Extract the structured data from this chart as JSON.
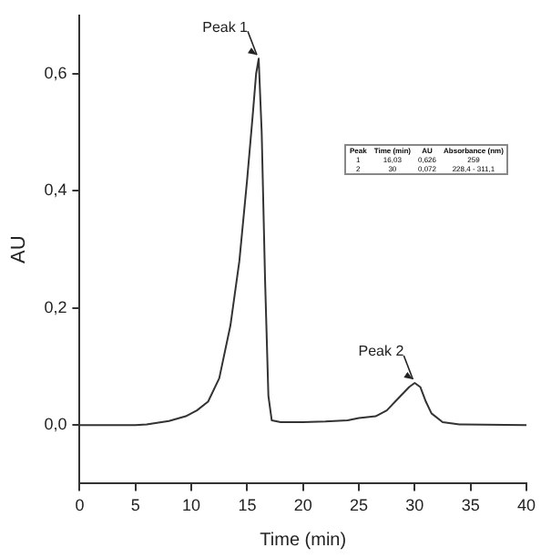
{
  "chart_data": {
    "type": "line",
    "xlabel": "Time (min)",
    "ylabel": "AU",
    "x": [
      0,
      5,
      6,
      8,
      9.5,
      10.5,
      11.5,
      12.5,
      13.5,
      14.3,
      15,
      15.5,
      15.8,
      16.03,
      16.3,
      16.6,
      16.9,
      17.2,
      18,
      20,
      22,
      24,
      25,
      26.5,
      27.5,
      28.5,
      29.5,
      30,
      30.5,
      31,
      31.5,
      32.5,
      34,
      40
    ],
    "series": [
      {
        "color": "#333333",
        "values": [
          0,
          0,
          0.001,
          0.007,
          0.015,
          0.025,
          0.04,
          0.08,
          0.17,
          0.28,
          0.42,
          0.53,
          0.6,
          0.626,
          0.5,
          0.25,
          0.05,
          0.008,
          0.005,
          0.005,
          0.006,
          0.008,
          0.012,
          0.015,
          0.025,
          0.045,
          0.065,
          0.072,
          0.065,
          0.04,
          0.02,
          0.005,
          0.001,
          0
        ]
      }
    ],
    "xlim": [
      0,
      40
    ],
    "xticks": [
      0,
      5,
      10,
      15,
      20,
      25,
      30,
      35,
      40
    ],
    "ylim": [
      -0.1,
      0.7
    ],
    "yticks": [
      {
        "value": 0,
        "label": "0,0"
      },
      {
        "value": 0.2,
        "label": "0,2"
      },
      {
        "value": 0.4,
        "label": "0,4"
      },
      {
        "value": 0.6,
        "label": "0,6"
      }
    ],
    "grid": false,
    "legend": false,
    "marker": "none",
    "line_style": "solid",
    "annotations": [
      {
        "text": "Peak 1",
        "x": 16.03,
        "y": 0.626
      },
      {
        "text": "Peak 2",
        "x": 30,
        "y": 0.072
      },
      "Peak",
      "Time (min)",
      "AU",
      "Absorbance (nm)",
      "1",
      "16,03",
      "0,626",
      "259",
      "2",
      "30",
      "0,072",
      "228,4 - 311,1"
    ]
  }
}
